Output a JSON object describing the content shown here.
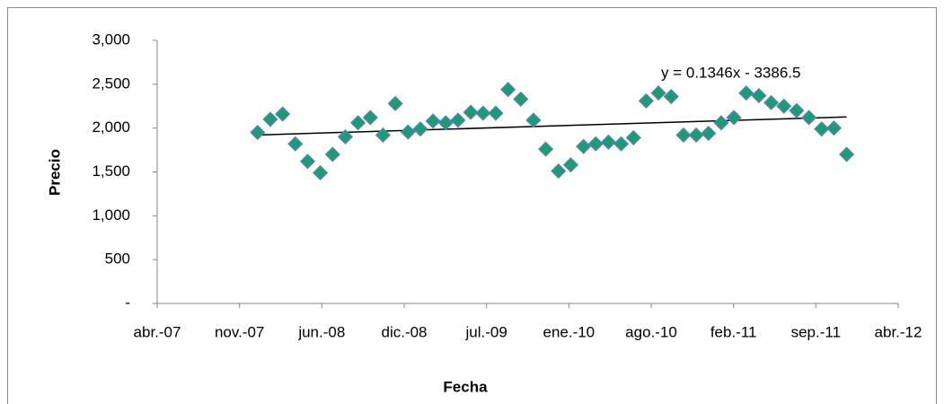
{
  "chart_data": {
    "type": "scatter",
    "x_label": "Fecha",
    "y_label": "Precio",
    "x": [
      39434,
      39467,
      39499,
      39532,
      39564,
      39597,
      39629,
      39662,
      39695,
      39727,
      39760,
      39792,
      39825,
      39857,
      39890,
      39923,
      39955,
      39988,
      40020,
      40053,
      40085,
      40118,
      40151,
      40183,
      40216,
      40248,
      40281,
      40313,
      40346,
      40379,
      40411,
      40444,
      40476,
      40509,
      40541,
      40574,
      40606,
      40639,
      40672,
      40704,
      40737,
      40769,
      40802,
      40835,
      40867,
      40900,
      40932,
      40965
    ],
    "values": [
      1950,
      2100,
      2160,
      1820,
      1620,
      1490,
      1700,
      1900,
      2060,
      2120,
      1920,
      2280,
      1955,
      1990,
      2080,
      2060,
      2090,
      2180,
      2170,
      2170,
      2440,
      2330,
      2090,
      1760,
      1510,
      1580,
      1790,
      1820,
      1840,
      1820,
      1890,
      2310,
      2400,
      2360,
      1920,
      1920,
      1940,
      2060,
      2120,
      2400,
      2370,
      2290,
      2250,
      2200,
      2120,
      1990,
      2000,
      1700
    ],
    "marker_color": "#1a9e6c",
    "marker_edge": "#4f81bd",
    "trendline": {
      "slope": 0.1346,
      "intercept": -3386.5,
      "label": "y = 0.1346x - 3386.5",
      "color": "#000000"
    },
    "xlim": [
      39173,
      41099
    ],
    "xticks": [
      {
        "value": 39173,
        "label": "abr.-07"
      },
      {
        "value": 39387,
        "label": "nov.-07"
      },
      {
        "value": 39601,
        "label": "jun.-08"
      },
      {
        "value": 39815,
        "label": "dic.-08"
      },
      {
        "value": 40029,
        "label": "jul.-09"
      },
      {
        "value": 40243,
        "label": "ene.-10"
      },
      {
        "value": 40457,
        "label": "ago.-10"
      },
      {
        "value": 40671,
        "label": "feb.-11"
      },
      {
        "value": 40885,
        "label": "sep.-11"
      },
      {
        "value": 41099,
        "label": "abr.-12"
      }
    ],
    "ylim": [
      0,
      3000
    ],
    "yticks": [
      {
        "value": 0,
        "label": "-"
      },
      500,
      {
        "value": 1000,
        "label": "1,000"
      },
      {
        "value": 1500,
        "label": "1,500"
      },
      {
        "value": 2000,
        "label": "2,000"
      },
      {
        "value": 2500,
        "label": "2,500"
      },
      {
        "value": 3000,
        "label": "3,000"
      }
    ],
    "grid": false
  }
}
